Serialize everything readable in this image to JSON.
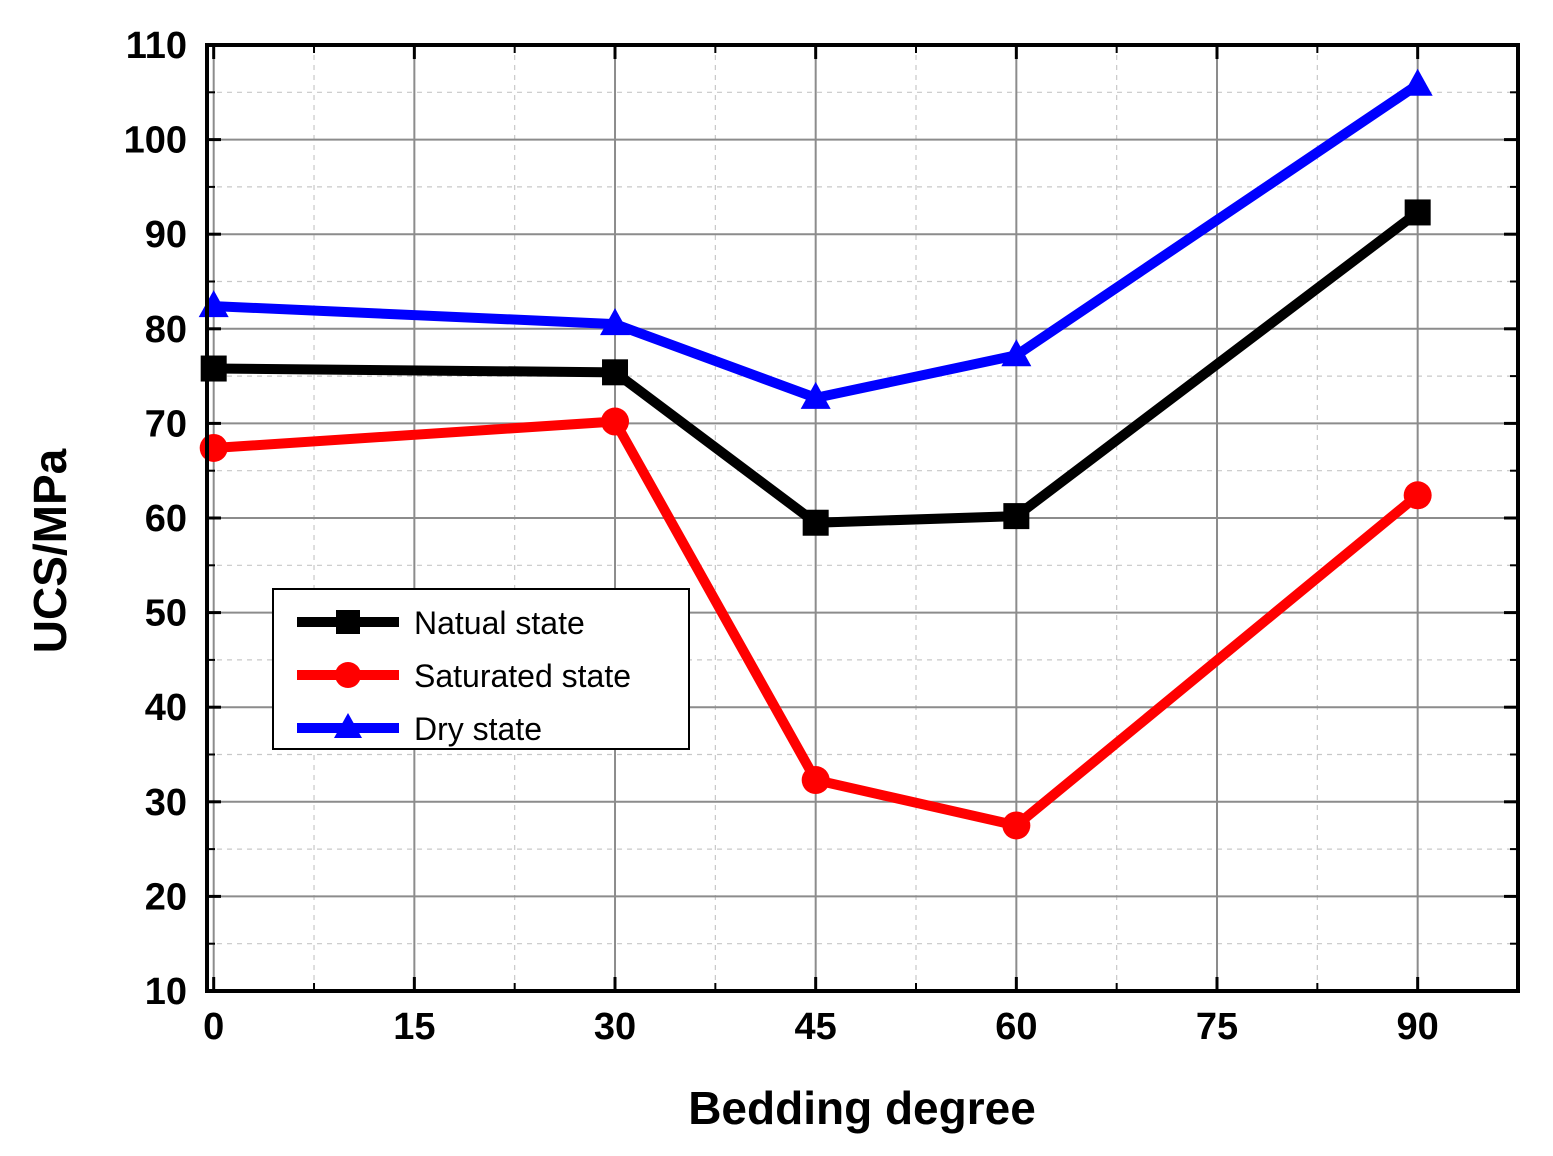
{
  "chart_data": {
    "type": "line",
    "title": "",
    "xlabel": "Bedding degree",
    "ylabel": "UCS/MPa",
    "xlim": [
      -0.5,
      97.5
    ],
    "ylim": [
      10,
      110
    ],
    "xticks": [
      0,
      15,
      30,
      45,
      60,
      75,
      90
    ],
    "yticks": [
      10,
      20,
      30,
      40,
      50,
      60,
      70,
      80,
      90,
      100,
      110
    ],
    "x": [
      0,
      30,
      45,
      60,
      90
    ],
    "grid": true,
    "legend_position": "center-left",
    "series": [
      {
        "name": "Natual state",
        "color": "#000000",
        "marker": "square",
        "values": [
          75.8,
          75.4,
          59.5,
          60.2,
          92.3
        ]
      },
      {
        "name": "Saturated state",
        "color": "#ff0000",
        "marker": "circle",
        "values": [
          67.4,
          70.2,
          32.3,
          27.5,
          62.4
        ]
      },
      {
        "name": "Dry state",
        "color": "#0000ff",
        "marker": "triangle",
        "values": [
          82.4,
          80.5,
          72.7,
          77.2,
          105.8
        ]
      }
    ]
  }
}
